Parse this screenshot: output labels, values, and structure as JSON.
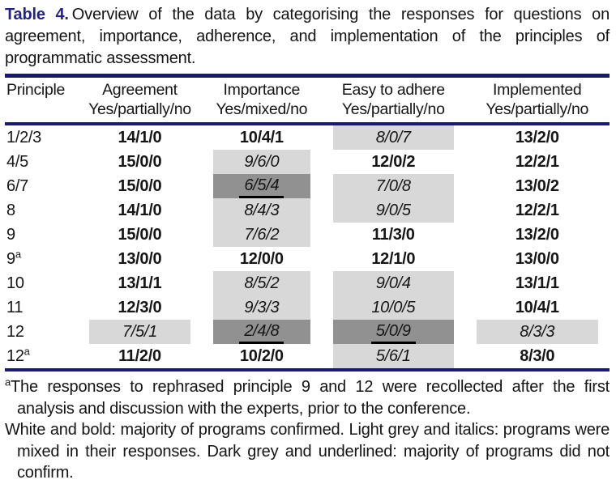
{
  "caption": {
    "label": "Table 4.",
    "text": "Overview of the data by categorising the responses for questions on agreement, importance, adherence, and implementation of the principles of programmatic assessment."
  },
  "table": {
    "columns": [
      {
        "label": "Principle",
        "sublabel": ""
      },
      {
        "label": "Agreement",
        "sublabel": "Yes/partially/no"
      },
      {
        "label": "Importance",
        "sublabel": "Yes/mixed/no"
      },
      {
        "label": "Easy to adhere",
        "sublabel": "Yes/partially/no"
      },
      {
        "label": "Implemented",
        "sublabel": "Yes/partially/no"
      }
    ],
    "rows": [
      {
        "principle": "1/2/3",
        "sup": "",
        "cells": [
          {
            "value": "14/1/0",
            "style": "confirmed"
          },
          {
            "value": "10/4/1",
            "style": "confirmed"
          },
          {
            "value": "8/0/7",
            "style": "mixed"
          },
          {
            "value": "13/2/0",
            "style": "confirmed"
          }
        ]
      },
      {
        "principle": "4/5",
        "sup": "",
        "cells": [
          {
            "value": "15/0/0",
            "style": "confirmed"
          },
          {
            "value": "9/6/0",
            "style": "mixed"
          },
          {
            "value": "12/0/2",
            "style": "confirmed"
          },
          {
            "value": "12/2/1",
            "style": "confirmed"
          }
        ]
      },
      {
        "principle": "6/7",
        "sup": "",
        "cells": [
          {
            "value": "15/0/0",
            "style": "confirmed"
          },
          {
            "value": "6/5/4",
            "style": "notconfirmed"
          },
          {
            "value": "7/0/8",
            "style": "mixed"
          },
          {
            "value": "13/0/2",
            "style": "confirmed"
          }
        ]
      },
      {
        "principle": "8",
        "sup": "",
        "cells": [
          {
            "value": "14/1/0",
            "style": "confirmed"
          },
          {
            "value": "8/4/3",
            "style": "mixed"
          },
          {
            "value": "9/0/5",
            "style": "mixed"
          },
          {
            "value": "12/2/1",
            "style": "confirmed"
          }
        ]
      },
      {
        "principle": "9",
        "sup": "",
        "cells": [
          {
            "value": "15/0/0",
            "style": "confirmed"
          },
          {
            "value": "7/6/2",
            "style": "mixed"
          },
          {
            "value": "11/3/0",
            "style": "confirmed"
          },
          {
            "value": "13/2/0",
            "style": "confirmed"
          }
        ]
      },
      {
        "principle": "9",
        "sup": "a",
        "cells": [
          {
            "value": "13/0/0",
            "style": "confirmed"
          },
          {
            "value": "12/0/0",
            "style": "confirmed"
          },
          {
            "value": "12/1/0",
            "style": "confirmed"
          },
          {
            "value": "13/0/0",
            "style": "confirmed"
          }
        ]
      },
      {
        "principle": "10",
        "sup": "",
        "cells": [
          {
            "value": "13/1/1",
            "style": "confirmed"
          },
          {
            "value": "8/5/2",
            "style": "mixed"
          },
          {
            "value": "9/0/4",
            "style": "mixed"
          },
          {
            "value": "13/1/1",
            "style": "confirmed"
          }
        ]
      },
      {
        "principle": "11",
        "sup": "",
        "cells": [
          {
            "value": "12/3/0",
            "style": "confirmed"
          },
          {
            "value": "9/3/3",
            "style": "mixed"
          },
          {
            "value": "10/0/5",
            "style": "mixed"
          },
          {
            "value": "10/4/1",
            "style": "confirmed"
          }
        ]
      },
      {
        "principle": "12",
        "sup": "",
        "cells": [
          {
            "value": "7/5/1",
            "style": "mixed"
          },
          {
            "value": "2/4/8",
            "style": "notconfirmed"
          },
          {
            "value": "5/0/9",
            "style": "notconfirmed"
          },
          {
            "value": "8/3/3",
            "style": "mixed"
          }
        ]
      },
      {
        "principle": "12",
        "sup": "a",
        "cells": [
          {
            "value": "11/2/0",
            "style": "confirmed"
          },
          {
            "value": "10/2/0",
            "style": "confirmed"
          },
          {
            "value": "5/6/1",
            "style": "mixed"
          },
          {
            "value": "8/3/0",
            "style": "confirmed"
          }
        ]
      }
    ]
  },
  "footnotes": [
    {
      "marker": "a",
      "text": "The responses to rephrased principle 9 and 12 were recollected after the first analysis and discussion with the experts, prior to the conference."
    },
    {
      "marker": "",
      "text": "White and bold: majority of programs confirmed. Light grey and italics: programs were mixed in their responses. Dark grey and underlined: majority of programs did not confirm."
    }
  ],
  "colors": {
    "navy_rule": "#191970",
    "caption_label": "#232387",
    "light_grey": "#d8d8d8",
    "dark_grey": "#919191",
    "underline": "#000000"
  }
}
